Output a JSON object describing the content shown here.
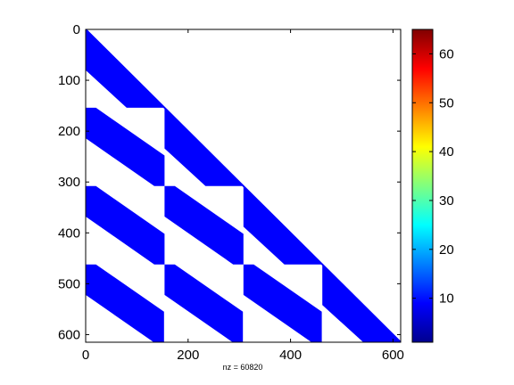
{
  "chart_data": {
    "type": "heatmap",
    "subtype": "sparsity-pattern",
    "xlabel": "nz = 60820",
    "x_ticks": [
      0,
      200,
      400,
      600
    ],
    "y_ticks": [
      0,
      100,
      200,
      300,
      400,
      500,
      600
    ],
    "xlim": [
      0,
      615
    ],
    "ylim": [
      0,
      615
    ],
    "y_axis_direction": "down",
    "matrix_size": 615,
    "block_size": 154,
    "band_width": 80,
    "marker_color": "#0000ff",
    "pattern": "lower-triangular, block-banded: main diagonal band plus a banded stripe in every sub-diagonal block",
    "colorbar": {
      "colormap": "jet",
      "range": [
        1,
        65
      ],
      "ticks": [
        10,
        20,
        30,
        40,
        50,
        60
      ]
    }
  }
}
